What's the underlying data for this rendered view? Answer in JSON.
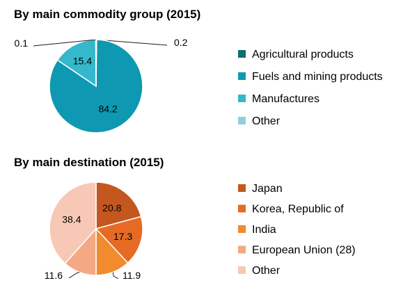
{
  "chart_data": [
    {
      "type": "pie",
      "title": "By main commodity group (2015)",
      "categories": [
        "Agricultural products",
        "Fuels and mining products",
        "Manufactures",
        "Other"
      ],
      "values": [
        0.2,
        84.2,
        15.4,
        0.1
      ],
      "colors": [
        "#0e6d73",
        "#0e98b1",
        "#35b8cb",
        "#8fd0dc"
      ],
      "data_labels": [
        "0.2",
        "84.2",
        "15.4",
        "0.1"
      ],
      "legend": "right"
    },
    {
      "type": "pie",
      "title": "By main destination (2015)",
      "categories": [
        "Japan",
        "Korea, Republic of",
        "India",
        "European Union (28)",
        "Other"
      ],
      "values": [
        20.8,
        17.3,
        11.9,
        11.6,
        38.4
      ],
      "colors": [
        "#c4561f",
        "#e66a24",
        "#f28a2e",
        "#f4a883",
        "#f8c8b6"
      ],
      "data_labels": [
        "20.8",
        "17.3",
        "11.9",
        "11.6",
        "38.4"
      ],
      "legend": "right"
    }
  ]
}
